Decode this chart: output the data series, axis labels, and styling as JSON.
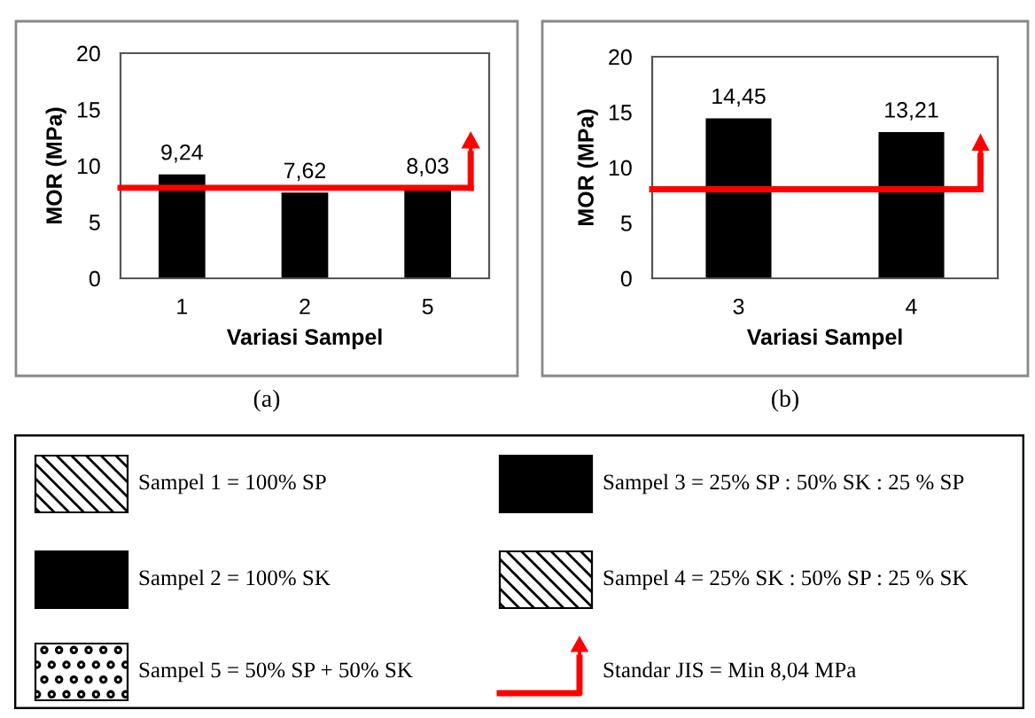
{
  "chart_data": [
    {
      "type": "bar",
      "categories": [
        "1",
        "2",
        "5"
      ],
      "values": [
        9.24,
        7.62,
        8.03
      ],
      "color": "#000000",
      "value_labels": [
        "9,24",
        "7,62",
        "8,03"
      ],
      "xlabel": "Variasi Sampel",
      "ylabel": "MOR (MPa)",
      "ylim": [
        0,
        20
      ],
      "yticks": [
        0,
        5,
        10,
        15,
        20
      ],
      "ref_lines": [
        {
          "axis": "y",
          "value": 8.04,
          "color": "#ff0000"
        }
      ],
      "annotations": [
        "(a)"
      ],
      "grid": false
    },
    {
      "type": "bar",
      "categories": [
        "3",
        "4"
      ],
      "values": [
        14.45,
        13.21
      ],
      "color": "#000000",
      "value_labels": [
        "14,45",
        "13,21"
      ],
      "xlabel": "Variasi Sampel",
      "ylabel": "MOR (MPa)",
      "ylim": [
        0,
        20
      ],
      "yticks": [
        0,
        5,
        10,
        15,
        20
      ],
      "ref_lines": [
        {
          "axis": "y",
          "value": 8.04,
          "color": "#ff0000"
        }
      ],
      "annotations": [
        "(b)"
      ],
      "grid": false
    },
    {
      "type": "other",
      "annotations": [
        "Sampel 1 = 100% SP",
        "Sampel 3 = 25% SP : 50% SK : 25 % SP",
        "Sampel 2 = 100% SK",
        "Sampel 4 = 25% SK : 50% SP : 25 % SK",
        "Sampel 5 = 50% SP + 50% SK",
        "Standar JIS = Min 8,04 MPa"
      ]
    }
  ]
}
